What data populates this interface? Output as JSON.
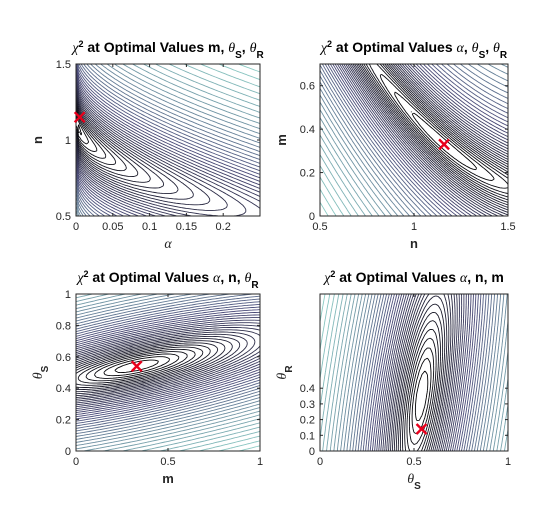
{
  "chart_data": [
    {
      "type": "contour",
      "title": {
        "lead": "χ",
        "sup": "2",
        "text": " at Optimal Values m, ",
        "sym1": "θ",
        "sub1": "S",
        "sep": ", ",
        "sym2": "θ",
        "sub2": "R"
      },
      "xlabel": "α",
      "ylabel": "n",
      "xlim": [
        0,
        0.25
      ],
      "ylim": [
        0.5,
        1.5
      ],
      "xticks": [
        {
          "v": 0,
          "label": "0"
        },
        {
          "v": 0.05,
          "label": "0.05"
        },
        {
          "v": 0.1,
          "label": "0.1"
        },
        {
          "v": 0.15,
          "label": "0.15"
        },
        {
          "v": 0.2,
          "label": "0.2"
        }
      ],
      "yticks": [
        {
          "v": 0.5,
          "label": "0.5"
        },
        {
          "v": 1,
          "label": "1"
        },
        {
          "v": 1.5,
          "label": "1.5"
        }
      ],
      "optimum": {
        "x": 0.005,
        "y": 1.15
      }
    },
    {
      "type": "contour",
      "title": {
        "lead": "χ",
        "sup": "2",
        "text": " at Optimal Values ",
        "sym0": "α",
        "sep0": ", ",
        "sym1": "θ",
        "sub1": "S",
        "sep": ", ",
        "sym2": "θ",
        "sub2": "R"
      },
      "xlabel": "n",
      "ylabel": "m",
      "xlim": [
        0.5,
        1.5
      ],
      "ylim": [
        0,
        0.7
      ],
      "xticks": [
        {
          "v": 0.5,
          "label": "0.5"
        },
        {
          "v": 1,
          "label": "1"
        },
        {
          "v": 1.5,
          "label": "1.5"
        }
      ],
      "yticks": [
        {
          "v": 0,
          "label": "0"
        },
        {
          "v": 0.2,
          "label": "0.2"
        },
        {
          "v": 0.4,
          "label": "0.4"
        },
        {
          "v": 0.6,
          "label": "0.6"
        }
      ],
      "optimum": {
        "x": 1.16,
        "y": 0.33
      }
    },
    {
      "type": "contour",
      "title": {
        "lead": "χ",
        "sup": "2",
        "text": " at Optimal Values ",
        "sym0": "α",
        "text2": ", n, ",
        "sym2": "θ",
        "sub2": "R"
      },
      "xlabel": "m",
      "ylabel": {
        "sym": "θ",
        "sub": "S"
      },
      "xlim": [
        0,
        1
      ],
      "ylim": [
        0,
        1
      ],
      "xticks": [
        {
          "v": 0,
          "label": "0"
        },
        {
          "v": 0.5,
          "label": "0.5"
        },
        {
          "v": 1,
          "label": "1"
        }
      ],
      "yticks": [
        {
          "v": 0,
          "label": "0"
        },
        {
          "v": 0.2,
          "label": "0.2"
        },
        {
          "v": 0.4,
          "label": "0.4"
        },
        {
          "v": 0.6,
          "label": "0.6"
        },
        {
          "v": 0.8,
          "label": "0.8"
        },
        {
          "v": 1,
          "label": "1"
        }
      ],
      "optimum": {
        "x": 0.33,
        "y": 0.54
      }
    },
    {
      "type": "contour",
      "title": {
        "lead": "χ",
        "sup": "2",
        "text": " at Optimal Values ",
        "sym0": "α",
        "text2": ", n, m"
      },
      "xlabel": {
        "sym": "θ",
        "sub": "S"
      },
      "ylabel": {
        "sym": "θ",
        "sub": "R"
      },
      "xlim": [
        0,
        1
      ],
      "ylim": [
        0,
        1
      ],
      "xticks": [
        {
          "v": 0,
          "label": "0"
        },
        {
          "v": 0.5,
          "label": "0.5"
        },
        {
          "v": 1,
          "label": "1"
        }
      ],
      "yticks": [
        {
          "v": 0,
          "label": "0"
        },
        {
          "v": 0.1,
          "label": "0.1"
        },
        {
          "v": 0.2,
          "label": "0.2"
        },
        {
          "v": 0.3,
          "label": "0.3"
        },
        {
          "v": 0.4,
          "label": "0.4"
        }
      ],
      "optimum": {
        "x": 0.54,
        "y": 0.14
      }
    }
  ],
  "colors": {
    "contour_high": "#8fd1c8",
    "contour_mid": "#4a4a78",
    "contour_low": "#000000",
    "marker": "#e8001c"
  }
}
